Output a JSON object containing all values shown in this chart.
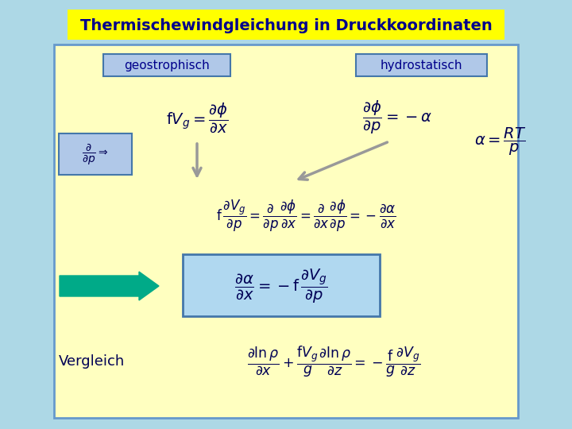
{
  "title": "Thermischewindgleichung in Druckkoordinaten",
  "title_bg": "#FFFF00",
  "title_fg": "#00008B",
  "outer_bg": "#ADD8E6",
  "inner_bg": "#FFFFC0",
  "inner_border": "#6699CC",
  "label_geostrophisch": "geostrophisch",
  "label_hydrostatisch": "hydrostatisch",
  "label_box_bg": "#B0C8E8",
  "label_box_border": "#4477AA",
  "label_text_color": "#00008B",
  "formula_color": "#000055",
  "result_box_bg": "#B0D8F0",
  "result_box_border": "#4477AA",
  "vergleich_text": "Vergleich",
  "vergleich_color": "#000055",
  "arrow_large_color": "#00AA88",
  "gray_arrow_color": "#999999"
}
